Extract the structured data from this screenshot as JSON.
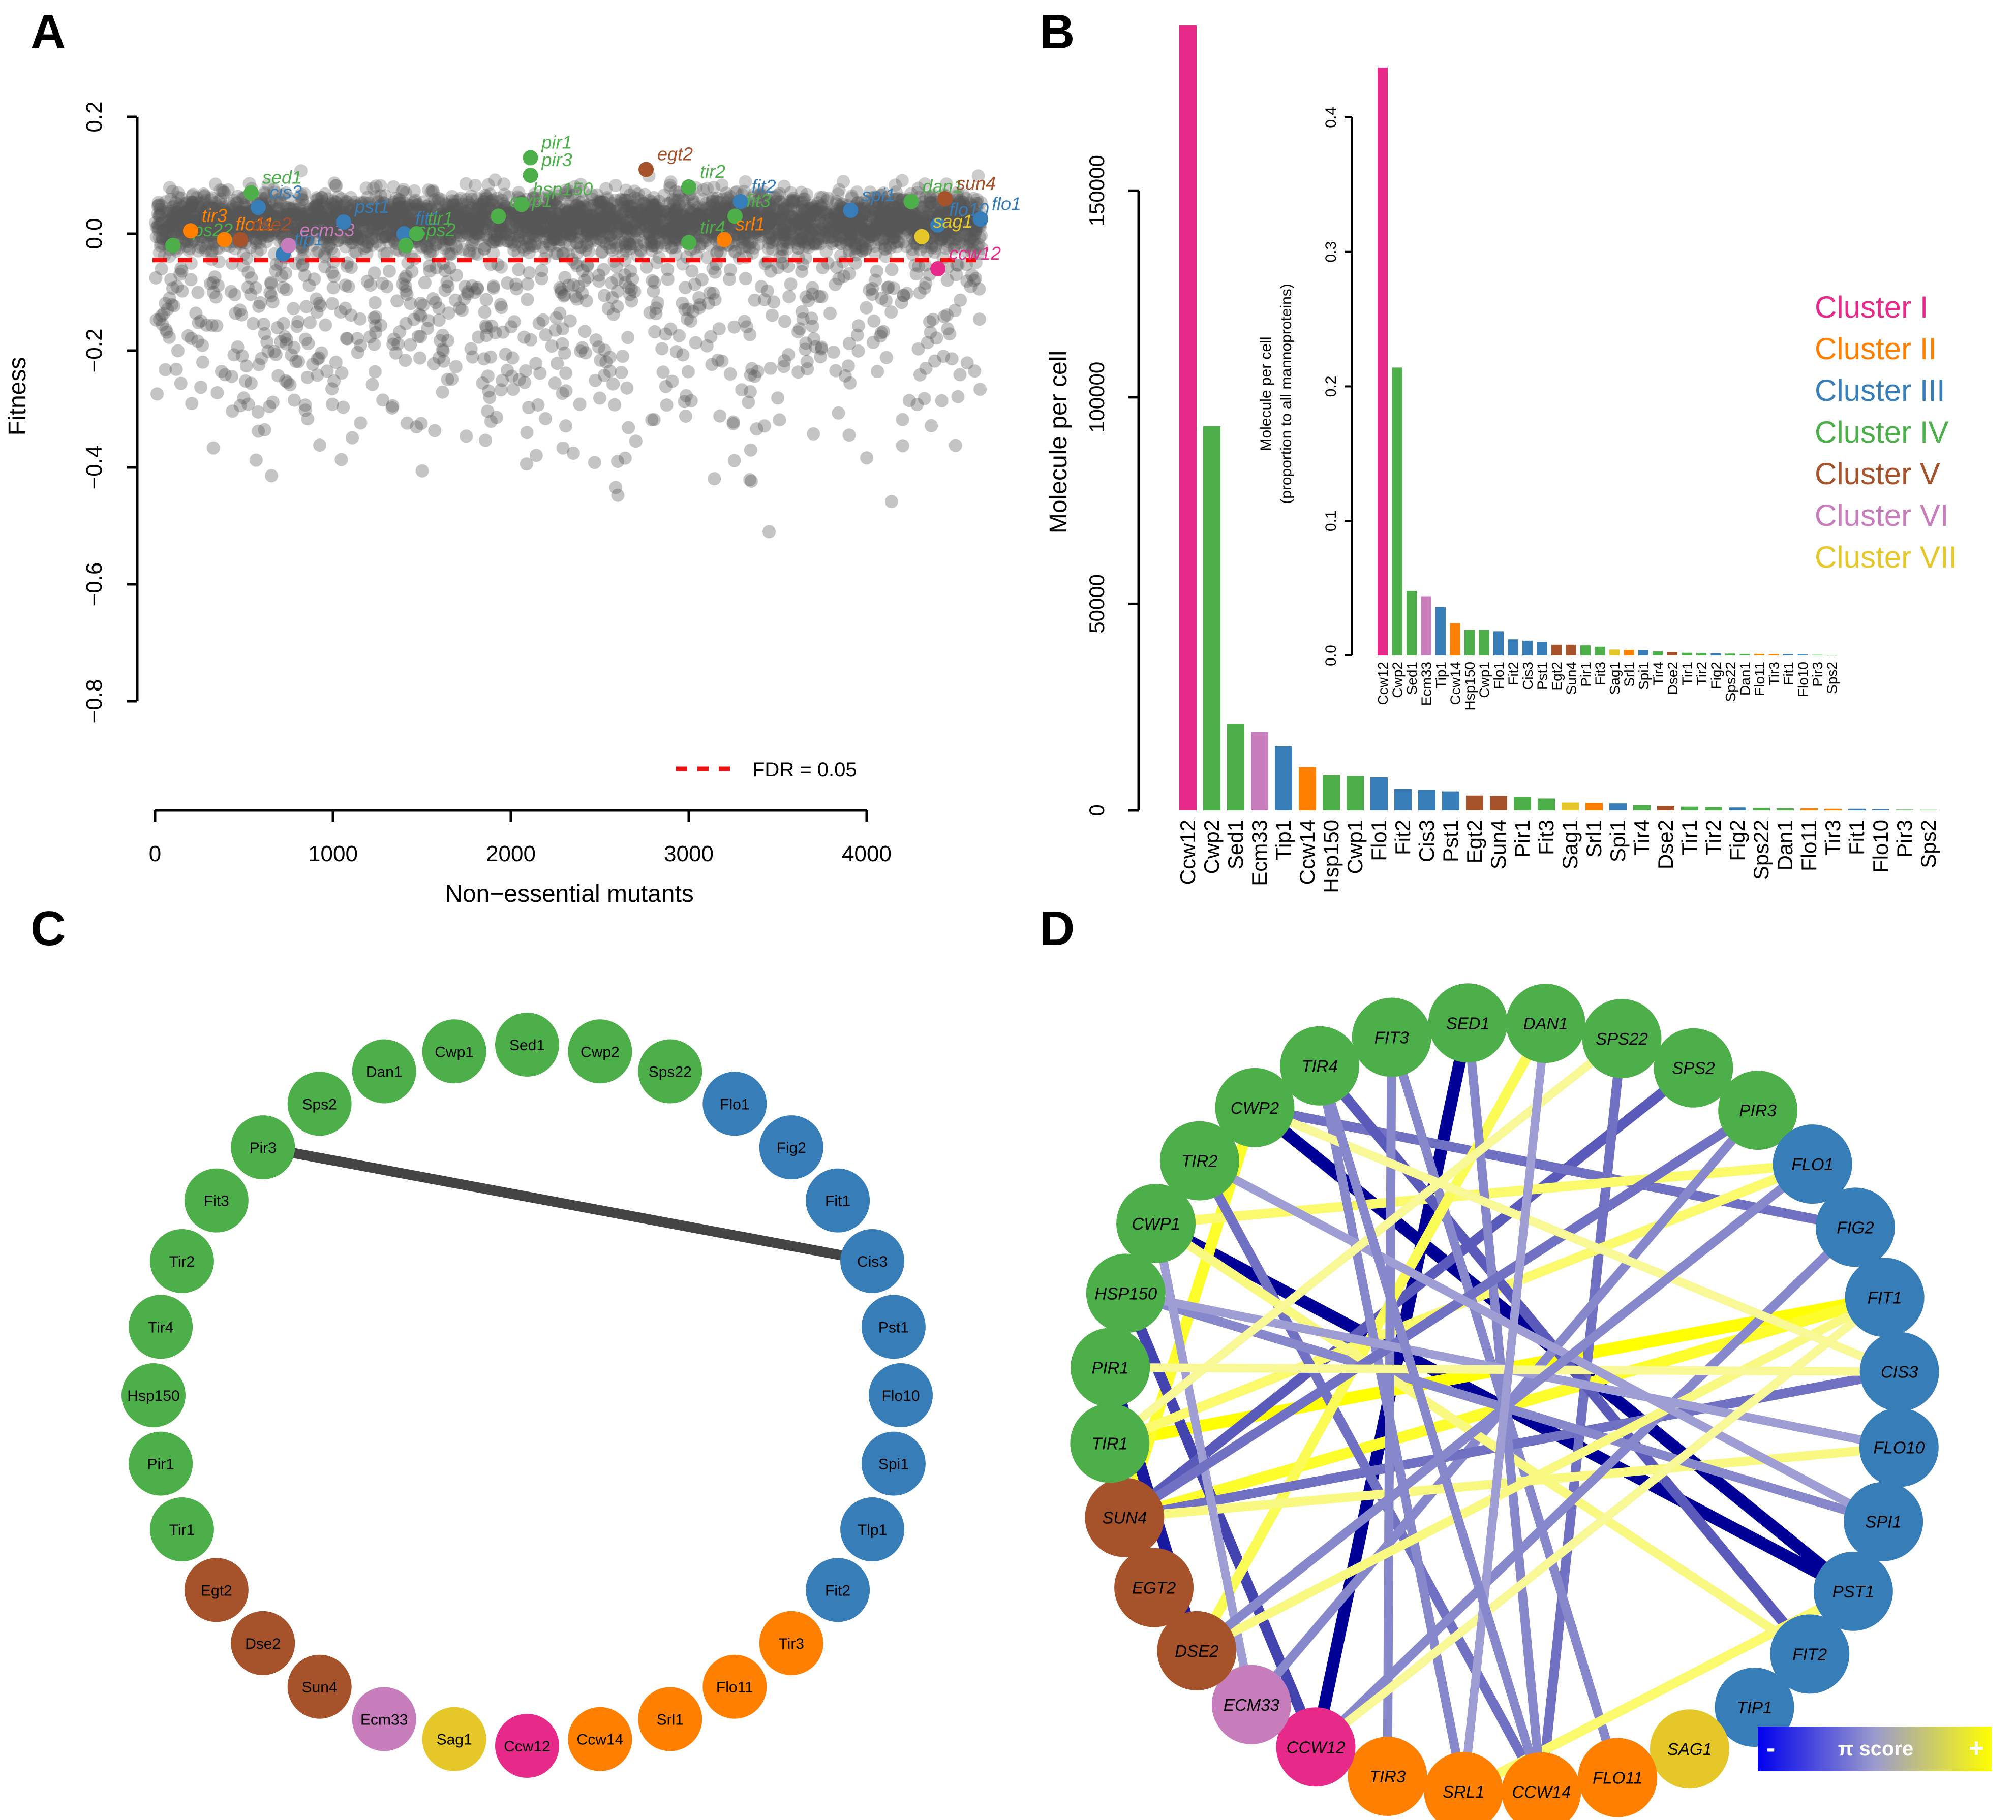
{
  "panels": {
    "a": "A",
    "b": "B",
    "c": "C",
    "d": "D"
  },
  "colors": {
    "I": "#e7298a",
    "II": "#ff7f00",
    "III": "#377eb8",
    "IV": "#4daf4a",
    "V": "#a6522a",
    "VI": "#c77cbc",
    "VII": "#e6c729"
  },
  "chart_data": [
    {
      "panel": "A",
      "type": "scatter",
      "xlabel": "Non−essential mutants",
      "ylabel": "Fitness",
      "xlim": [
        0,
        4000
      ],
      "ylim": [
        -0.8,
        0.2
      ],
      "xticks": [
        "0",
        "1000",
        "2000",
        "3000",
        "4000"
      ],
      "yticks": [
        "0.2",
        "0.0",
        "−0.2",
        "−0.4",
        "−0.6",
        "−0.8"
      ],
      "fdr_line": {
        "y": -0.045,
        "color": "#ee1111",
        "label": "FDR = 0.05"
      },
      "background_points": {
        "n_mutants": 4400,
        "color": "#555555",
        "note": "non-essential mutants"
      },
      "highlighted": [
        {
          "label": "sps22",
          "x": 100,
          "y": -0.02,
          "cluster": "IV"
        },
        {
          "label": "tir3",
          "x": 200,
          "y": 0.005,
          "cluster": "II"
        },
        {
          "label": "flo11",
          "x": 390,
          "y": -0.01,
          "cluster": "II"
        },
        {
          "label": "dse2",
          "x": 480,
          "y": -0.01,
          "cluster": "V"
        },
        {
          "label": "sed1",
          "x": 540,
          "y": 0.07,
          "cluster": "IV"
        },
        {
          "label": "cis3",
          "x": 580,
          "y": 0.045,
          "cluster": "III"
        },
        {
          "label": "tip1",
          "x": 720,
          "y": -0.035,
          "cluster": "III"
        },
        {
          "label": "ecm33",
          "x": 750,
          "y": -0.02,
          "cluster": "VI"
        },
        {
          "label": "pst1",
          "x": 1060,
          "y": 0.02,
          "cluster": "III"
        },
        {
          "label": "fit1",
          "x": 1400,
          "y": 0.0,
          "cluster": "III"
        },
        {
          "label": "sps2",
          "x": 1410,
          "y": -0.02,
          "cluster": "IV"
        },
        {
          "label": "tir1",
          "x": 1470,
          "y": 0.0,
          "cluster": "IV"
        },
        {
          "label": "cwp1",
          "x": 1930,
          "y": 0.03,
          "cluster": "IV"
        },
        {
          "label": "hsp150",
          "x": 2060,
          "y": 0.05,
          "cluster": "IV"
        },
        {
          "label": "pir1",
          "x": 2110,
          "y": 0.13,
          "cluster": "IV"
        },
        {
          "label": "pir3",
          "x": 2110,
          "y": 0.1,
          "cluster": "IV"
        },
        {
          "label": "egt2",
          "x": 2760,
          "y": 0.11,
          "cluster": "V"
        },
        {
          "label": "tir2",
          "x": 3000,
          "y": 0.08,
          "cluster": "IV"
        },
        {
          "label": "tir4",
          "x": 3000,
          "y": -0.015,
          "cluster": "IV"
        },
        {
          "label": "fit3",
          "x": 3260,
          "y": 0.03,
          "cluster": "IV"
        },
        {
          "label": "srl1",
          "x": 3200,
          "y": -0.01,
          "cluster": "II"
        },
        {
          "label": "fit2",
          "x": 3290,
          "y": 0.055,
          "cluster": "III"
        },
        {
          "label": "spi1",
          "x": 3910,
          "y": 0.04,
          "cluster": "III"
        },
        {
          "label": "dan1",
          "x": 4250,
          "y": 0.055,
          "cluster": "IV"
        },
        {
          "label": "sun4",
          "x": 4440,
          "y": 0.06,
          "cluster": "V"
        },
        {
          "label": "flo10",
          "x": 4400,
          "y": 0.015,
          "cluster": "III"
        },
        {
          "label": "sag1",
          "x": 4310,
          "y": -0.005,
          "cluster": "VII"
        },
        {
          "label": "flo1",
          "x": 4640,
          "y": 0.025,
          "cluster": "III"
        },
        {
          "label": "ccw12",
          "x": 4400,
          "y": -0.06,
          "cluster": "I"
        }
      ]
    },
    {
      "panel": "B",
      "type": "bar",
      "ylabel": "Molecule per cell",
      "ylim": [
        0,
        190000
      ],
      "yticks": [
        "0",
        "50000",
        "100000",
        "150000"
      ],
      "categories": [
        "Ccw12",
        "Cwp2",
        "Sed1",
        "Ecm33",
        "Tip1",
        "Ccw14",
        "Hsp150",
        "Cwp1",
        "Flo1",
        "Fit2",
        "Cis3",
        "Pst1",
        "Egt2",
        "Sun4",
        "Pir1",
        "Fit3",
        "Sag1",
        "Srl1",
        "Spi1",
        "Tir4",
        "Dse2",
        "Tir1",
        "Tir2",
        "Fig2",
        "Sps22",
        "Dan1",
        "Flo11",
        "Tir3",
        "Fit1",
        "Flo10",
        "Pir3",
        "Sps2"
      ],
      "values": [
        190000,
        93000,
        21000,
        19000,
        15500,
        10500,
        8500,
        8300,
        8000,
        5200,
        5000,
        4600,
        3600,
        3500,
        3300,
        2900,
        1900,
        1800,
        1700,
        1300,
        1100,
        900,
        800,
        700,
        600,
        500,
        500,
        400,
        400,
        300,
        200,
        150
      ],
      "clusters": [
        "I",
        "IV",
        "IV",
        "VI",
        "III",
        "II",
        "IV",
        "IV",
        "III",
        "III",
        "III",
        "III",
        "V",
        "V",
        "IV",
        "IV",
        "VII",
        "II",
        "III",
        "IV",
        "V",
        "IV",
        "IV",
        "III",
        "IV",
        "IV",
        "II",
        "II",
        "III",
        "III",
        "IV",
        "IV"
      ]
    },
    {
      "panel": "B-inset",
      "type": "bar",
      "ylabel": "Molecule per cell",
      "ylabel2": "(proportion to all mannoproteins)",
      "ylim": [
        0,
        0.44
      ],
      "yticks": [
        "0.0",
        "0.1",
        "0.2",
        "0.3",
        "0.4"
      ],
      "categories": [
        "Ccw12",
        "Cwp2",
        "Sed1",
        "Ecm33",
        "Tip1",
        "Ccw14",
        "Hsp150",
        "Cwp1",
        "Flo1",
        "Fit2",
        "Cis3",
        "Pst1",
        "Egt2",
        "Sun4",
        "Pir1",
        "Fit3",
        "Sag1",
        "Srl1",
        "Spi1",
        "Tir4",
        "Dse2",
        "Tir1",
        "Tir2",
        "Fig2",
        "Sps22",
        "Dan1",
        "Flo11",
        "Tir3",
        "Fit1",
        "Flo10",
        "Pir3",
        "Sps2"
      ],
      "values": [
        0.437,
        0.214,
        0.048,
        0.044,
        0.036,
        0.024,
        0.019,
        0.019,
        0.018,
        0.012,
        0.011,
        0.01,
        0.008,
        0.008,
        0.0075,
        0.0065,
        0.0044,
        0.0041,
        0.0039,
        0.003,
        0.0025,
        0.002,
        0.0018,
        0.0016,
        0.0014,
        0.0011,
        0.0011,
        0.0009,
        0.0009,
        0.0007,
        0.0005,
        0.0003
      ],
      "legend": [
        {
          "label": "Cluster I",
          "cluster": "I"
        },
        {
          "label": "Cluster II",
          "cluster": "II"
        },
        {
          "label": "Cluster III",
          "cluster": "III"
        },
        {
          "label": "Cluster IV",
          "cluster": "IV"
        },
        {
          "label": "Cluster V",
          "cluster": "V"
        },
        {
          "label": "Cluster VI",
          "cluster": "VI"
        },
        {
          "label": "Cluster VII",
          "cluster": "VII"
        }
      ]
    }
  ],
  "networks": {
    "c": {
      "nodes": [
        {
          "label": "Sed1",
          "cluster": "IV"
        },
        {
          "label": "Cwp2",
          "cluster": "IV"
        },
        {
          "label": "Sps22",
          "cluster": "IV"
        },
        {
          "label": "Flo1",
          "cluster": "III"
        },
        {
          "label": "Fig2",
          "cluster": "III"
        },
        {
          "label": "Fit1",
          "cluster": "III"
        },
        {
          "label": "Cis3",
          "cluster": "III"
        },
        {
          "label": "Pst1",
          "cluster": "III"
        },
        {
          "label": "Flo10",
          "cluster": "III"
        },
        {
          "label": "Spi1",
          "cluster": "III"
        },
        {
          "label": "Tlp1",
          "cluster": "III"
        },
        {
          "label": "Fit2",
          "cluster": "III"
        },
        {
          "label": "Tir3",
          "cluster": "II"
        },
        {
          "label": "Flo11",
          "cluster": "II"
        },
        {
          "label": "Srl1",
          "cluster": "II"
        },
        {
          "label": "Ccw14",
          "cluster": "II"
        },
        {
          "label": "Ccw12",
          "cluster": "I"
        },
        {
          "label": "Sag1",
          "cluster": "VII"
        },
        {
          "label": "Ecm33",
          "cluster": "VI"
        },
        {
          "label": "Sun4",
          "cluster": "V"
        },
        {
          "label": "Dse2",
          "cluster": "V"
        },
        {
          "label": "Egt2",
          "cluster": "V"
        },
        {
          "label": "Tir1",
          "cluster": "IV"
        },
        {
          "label": "Pir1",
          "cluster": "IV"
        },
        {
          "label": "Hsp150",
          "cluster": "IV"
        },
        {
          "label": "Tir4",
          "cluster": "IV"
        },
        {
          "label": "Tir2",
          "cluster": "IV"
        },
        {
          "label": "Fit3",
          "cluster": "IV"
        },
        {
          "label": "Pir3",
          "cluster": "IV"
        },
        {
          "label": "Sps2",
          "cluster": "IV"
        },
        {
          "label": "Dan1",
          "cluster": "IV"
        },
        {
          "label": "Cwp1",
          "cluster": "IV"
        }
      ],
      "edges": [
        [
          "Pir3",
          "Cis3"
        ]
      ]
    },
    "d": {
      "nodes": [
        {
          "label": "SPS22",
          "cluster": "IV"
        },
        {
          "label": "SPS2",
          "cluster": "IV"
        },
        {
          "label": "PIR3",
          "cluster": "IV"
        },
        {
          "label": "FLO1",
          "cluster": "III"
        },
        {
          "label": "FIG2",
          "cluster": "III"
        },
        {
          "label": "FIT1",
          "cluster": "III"
        },
        {
          "label": "CIS3",
          "cluster": "III"
        },
        {
          "label": "FLO10",
          "cluster": "III"
        },
        {
          "label": "SPI1",
          "cluster": "III"
        },
        {
          "label": "PST1",
          "cluster": "III"
        },
        {
          "label": "FIT2",
          "cluster": "III"
        },
        {
          "label": "TIP1",
          "cluster": "III"
        },
        {
          "label": "SAG1",
          "cluster": "VII"
        },
        {
          "label": "FLO11",
          "cluster": "II"
        },
        {
          "label": "CCW14",
          "cluster": "II"
        },
        {
          "label": "SRL1",
          "cluster": "II"
        },
        {
          "label": "TIR3",
          "cluster": "II"
        },
        {
          "label": "CCW12",
          "cluster": "I"
        },
        {
          "label": "ECM33",
          "cluster": "VI"
        },
        {
          "label": "DSE2",
          "cluster": "V"
        },
        {
          "label": "EGT2",
          "cluster": "V"
        },
        {
          "label": "SUN4",
          "cluster": "V"
        },
        {
          "label": "TIR1",
          "cluster": "IV"
        },
        {
          "label": "PIR1",
          "cluster": "IV"
        },
        {
          "label": "HSP150",
          "cluster": "IV"
        },
        {
          "label": "CWP1",
          "cluster": "IV"
        },
        {
          "label": "TIR2",
          "cluster": "IV"
        },
        {
          "label": "CWP2",
          "cluster": "IV"
        },
        {
          "label": "TIR4",
          "cluster": "IV"
        },
        {
          "label": "FIT3",
          "cluster": "IV"
        },
        {
          "label": "SED1",
          "cluster": "IV"
        },
        {
          "label": "DAN1",
          "cluster": "IV"
        }
      ],
      "legend": {
        "minus": "-",
        "label": "π score",
        "plus": "+"
      },
      "edges": [
        {
          "a": "CWP2",
          "b": "PST1",
          "score": -1.0
        },
        {
          "a": "CWP1",
          "b": "PST1",
          "score": -1.0
        },
        {
          "a": "SED1",
          "b": "CCW12",
          "score": -1.0
        },
        {
          "a": "TIR1",
          "b": "FIT1",
          "score": 1.0
        },
        {
          "a": "SUN4",
          "b": "FIT1",
          "score": 0.8
        },
        {
          "a": "CWP2",
          "b": "SUN4",
          "score": 0.8
        },
        {
          "a": "TIP1",
          "b": "SAG1",
          "score": -0.9
        },
        {
          "a": "PIR1",
          "b": "DSE2",
          "score": -0.9
        },
        {
          "a": "HSP150",
          "b": "CCW12",
          "score": -0.7
        },
        {
          "a": "SPS2",
          "b": "SUN4",
          "score": -0.6
        },
        {
          "a": "SPS22",
          "b": "CCW14",
          "score": -0.5
        },
        {
          "a": "FIG2",
          "b": "CWP2",
          "score": -0.5
        },
        {
          "a": "FLO1",
          "b": "TIR1",
          "score": 0.5
        },
        {
          "a": "CWP1",
          "b": "FLO1",
          "score": 0.5
        },
        {
          "a": "TIR4",
          "b": "FIT2",
          "score": -0.6
        },
        {
          "a": "TIR2",
          "b": "CCW14",
          "score": -0.5
        },
        {
          "a": "FIT3",
          "b": "FLO11",
          "score": -0.4
        },
        {
          "a": "DAN1",
          "b": "DSE2",
          "score": 0.6
        },
        {
          "a": "PIR3",
          "b": "ECM33",
          "score": -0.4
        },
        {
          "a": "CIS3",
          "b": "SUN4",
          "score": -0.5
        },
        {
          "a": "FLO10",
          "b": "SUN4",
          "score": 0.4
        },
        {
          "a": "SPI1",
          "b": "HSP150",
          "score": -0.4
        },
        {
          "a": "PST1",
          "b": "SRL1",
          "score": 0.5
        },
        {
          "a": "FIT2",
          "b": "CWP1",
          "score": 0.4
        },
        {
          "a": "CCW14",
          "b": "SED1",
          "score": -0.4
        },
        {
          "a": "TIR3",
          "b": "FIT3",
          "score": -0.4
        },
        {
          "a": "SRL1",
          "b": "TIR4",
          "score": -0.4
        },
        {
          "a": "CCW12",
          "b": "FIG2",
          "score": -0.4
        },
        {
          "a": "ECM33",
          "b": "CWP1",
          "score": -0.3
        },
        {
          "a": "DSE2",
          "b": "FIT1",
          "score": 0.4
        },
        {
          "a": "SUN4",
          "b": "PIR3",
          "score": -0.5
        },
        {
          "a": "HSP150",
          "b": "FLO10",
          "score": -0.3
        },
        {
          "a": "PIR1",
          "b": "CIS3",
          "score": 0.3
        },
        {
          "a": "TIR2",
          "b": "SPI1",
          "score": -0.3
        },
        {
          "a": "CWP2",
          "b": "CIS3",
          "score": 0.3
        },
        {
          "a": "SPS22",
          "b": "TIR1",
          "score": 0.3
        },
        {
          "a": "FLO1",
          "b": "DSE2",
          "score": -0.4
        },
        {
          "a": "FIT1",
          "b": "CCW12",
          "score": 0.3
        },
        {
          "a": "DAN1",
          "b": "SRL1",
          "score": -0.3
        },
        {
          "a": "TIR4",
          "b": "CCW14",
          "score": -0.4
        }
      ]
    }
  }
}
